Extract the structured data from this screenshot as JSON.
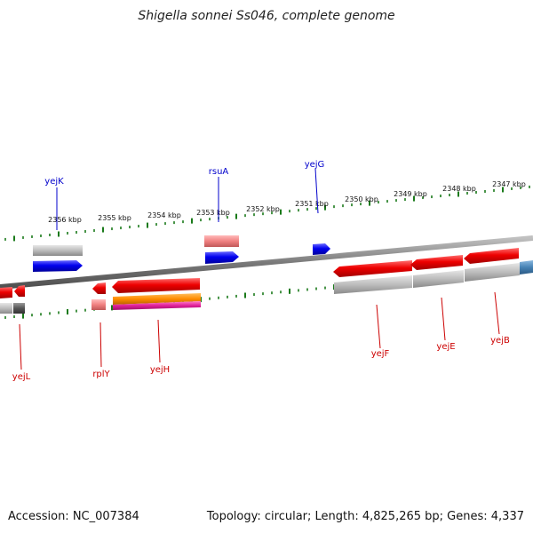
{
  "title": "Shigella sonnei Ss046, complete genome",
  "footer": {
    "accession": "Accession: NC_007384",
    "summary": "Topology: circular; Length: 4,825,265 bp; Genes: 4,337"
  },
  "scale": {
    "ticks": [
      "2356 kbp",
      "2355 kbp",
      "2354 kbp",
      "2353 kbp",
      "2352 kbp",
      "2351 kbp",
      "2350 kbp",
      "2349 kbp",
      "2348 kbp",
      "2347 kbp"
    ]
  },
  "labels_top": [
    "yejK",
    "rsuA",
    "yejG"
  ],
  "labels_bottom": [
    "yejL",
    "rplY",
    "yejH",
    "yejF",
    "yejE",
    "yejB"
  ],
  "colors": {
    "forward_gene": "#0000ee",
    "reverse_gene": "#ee0000",
    "pale_gene": "#f08080",
    "cds_gray": "#b8b8b8",
    "orange_feature": "#ff8c00",
    "magenta_feature": "#e0209a",
    "steel_feature": "#4682b4",
    "tick_green": "#1a7a1a",
    "backbone": "#808080",
    "top_label": "#0000cc",
    "bottom_label": "#cc0000"
  }
}
